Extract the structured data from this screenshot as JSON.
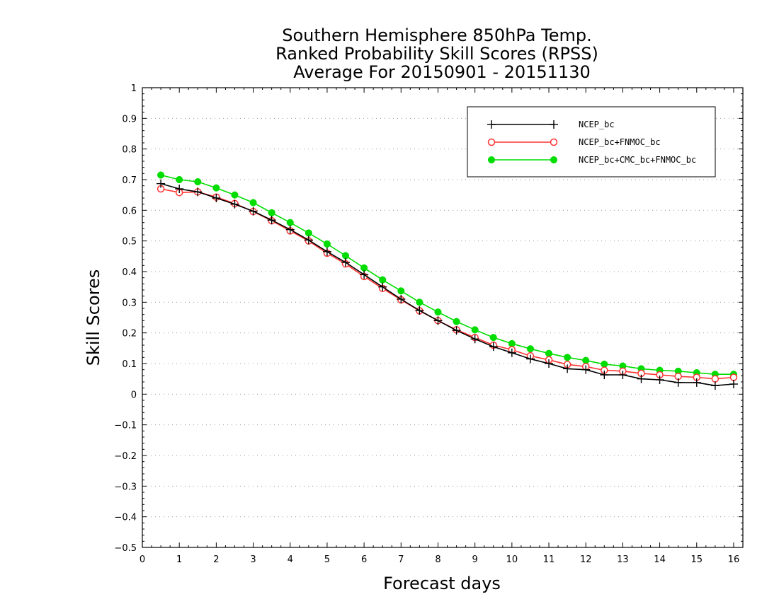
{
  "chart_data": {
    "type": "line",
    "title_lines": [
      "Southern Hemisphere 850hPa Temp.",
      "Ranked Probability Skill Scores (RPSS)",
      "Average For 20150901 - 20151130"
    ],
    "xlabel": "Forecast days",
    "ylabel": "Skill Scores",
    "xlim": [
      0,
      16.25
    ],
    "ylim": [
      -0.5,
      1.0
    ],
    "xticks": [
      "0",
      "1",
      "2",
      "3",
      "4",
      "5",
      "6",
      "7",
      "8",
      "9",
      "10",
      "11",
      "12",
      "13",
      "14",
      "15",
      "16"
    ],
    "yticks": [
      "−0.5",
      "−0.4",
      "−0.3",
      "−0.2",
      "−0.1",
      "0",
      "0.1",
      "0.2",
      "0.3",
      "0.4",
      "0.5",
      "0.6",
      "0.7",
      "0.8",
      "0.9",
      "1"
    ],
    "grid": "horizontal dotted",
    "legend_position": "top-right",
    "x": [
      0.5,
      1,
      1.5,
      2,
      2.5,
      3,
      3.5,
      4,
      4.5,
      5,
      5.5,
      6,
      6.5,
      7,
      7.5,
      8,
      8.5,
      9,
      9.5,
      10,
      10.5,
      11,
      11.5,
      12,
      12.5,
      13,
      13.5,
      14,
      14.5,
      15,
      15.5,
      16
    ],
    "series": [
      {
        "name": "NCEP_bc",
        "color": "#000000",
        "marker": "plus",
        "values": [
          0.687,
          0.67,
          0.66,
          0.64,
          0.62,
          0.597,
          0.568,
          0.537,
          0.503,
          0.465,
          0.43,
          0.39,
          0.35,
          0.31,
          0.273,
          0.24,
          0.208,
          0.18,
          0.155,
          0.135,
          0.115,
          0.1,
          0.083,
          0.08,
          0.063,
          0.063,
          0.05,
          0.047,
          0.038,
          0.038,
          0.028,
          0.033
        ]
      },
      {
        "name": "NCEP_bc+FNMOC_bc",
        "color": "#ff3333",
        "marker": "open-circle",
        "values": [
          0.67,
          0.658,
          0.66,
          0.643,
          0.622,
          0.596,
          0.566,
          0.533,
          0.5,
          0.46,
          0.425,
          0.384,
          0.345,
          0.308,
          0.272,
          0.24,
          0.21,
          0.185,
          0.16,
          0.145,
          0.125,
          0.112,
          0.097,
          0.09,
          0.078,
          0.075,
          0.068,
          0.063,
          0.058,
          0.055,
          0.05,
          0.055
        ]
      },
      {
        "name": "NCEP_bc+CMC_bc+FNMOC_bc",
        "color": "#00dd00",
        "marker": "filled-circle",
        "values": [
          0.715,
          0.7,
          0.693,
          0.673,
          0.65,
          0.625,
          0.592,
          0.56,
          0.526,
          0.49,
          0.452,
          0.412,
          0.373,
          0.337,
          0.3,
          0.268,
          0.237,
          0.21,
          0.185,
          0.165,
          0.148,
          0.133,
          0.12,
          0.11,
          0.098,
          0.092,
          0.083,
          0.078,
          0.075,
          0.07,
          0.065,
          0.065
        ]
      }
    ]
  }
}
